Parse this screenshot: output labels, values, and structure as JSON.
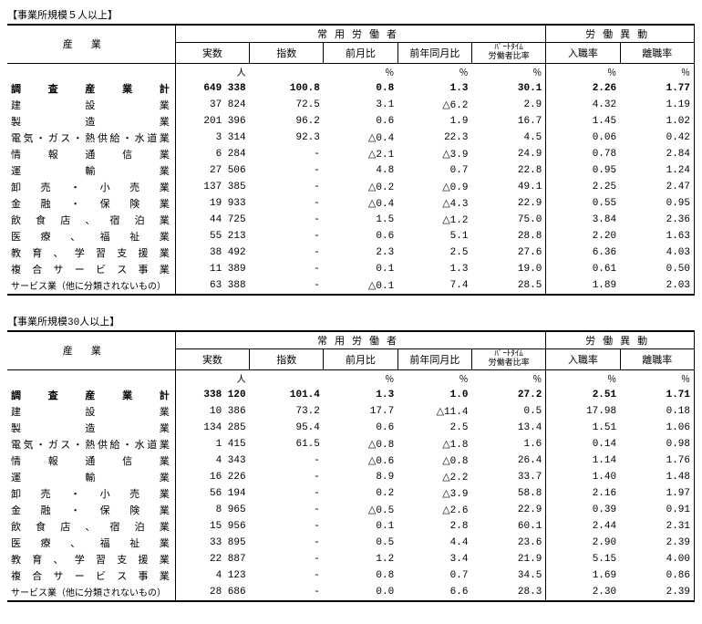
{
  "tables": [
    {
      "caption": "【事業所規模５人以上】",
      "group_headers": [
        "常用労働者",
        "労働異動"
      ],
      "col_headers": [
        "産業",
        "実数",
        "指数",
        "前月比",
        "前年同月比",
        "ﾊﾟｰﾄﾀｲﾑ労働者比率",
        "入職率",
        "離職率"
      ],
      "units": [
        "人",
        "",
        "％",
        "％",
        "％",
        "％",
        "％"
      ],
      "total": {
        "label": "調査産業計",
        "values": [
          "649 338",
          "100.8",
          "0.8",
          "1.3",
          "30.1",
          "2.26",
          "1.77"
        ]
      },
      "rows": [
        {
          "label": "建設業",
          "values": [
            "37 824",
            "72.5",
            "3.1",
            "△6.2",
            "2.9",
            "4.32",
            "1.19"
          ]
        },
        {
          "label": "製造業",
          "values": [
            "201 396",
            "96.2",
            "0.6",
            "1.9",
            "16.7",
            "1.45",
            "1.02"
          ]
        },
        {
          "label": "電気・ガス・熱供給・水道業",
          "values": [
            "3 314",
            "92.3",
            "△0.4",
            "22.3",
            "4.5",
            "0.06",
            "0.42"
          ]
        },
        {
          "label": "情報通信業",
          "values": [
            "6 284",
            "-",
            "△2.1",
            "△3.9",
            "24.9",
            "0.78",
            "2.84"
          ]
        },
        {
          "label": "運輸業",
          "values": [
            "27 506",
            "-",
            "4.8",
            "0.7",
            "22.8",
            "0.95",
            "1.24"
          ]
        },
        {
          "label": "卸売・小売業",
          "values": [
            "137 385",
            "-",
            "△0.2",
            "△0.9",
            "49.1",
            "2.25",
            "2.47"
          ]
        },
        {
          "label": "金融・保険業",
          "values": [
            "19 933",
            "-",
            "△0.4",
            "△4.3",
            "22.9",
            "0.55",
            "0.95"
          ]
        },
        {
          "label": "飲食店、宿泊業",
          "values": [
            "44 725",
            "-",
            "1.5",
            "△1.2",
            "75.0",
            "3.84",
            "2.36"
          ]
        },
        {
          "label": "医療、福祉業",
          "values": [
            "55 213",
            "-",
            "0.6",
            "5.1",
            "28.8",
            "2.20",
            "1.63"
          ]
        },
        {
          "label": "教育、学習支援業",
          "values": [
            "38 492",
            "-",
            "2.3",
            "2.5",
            "27.6",
            "6.36",
            "4.03"
          ]
        },
        {
          "label": "複合サービス事業",
          "values": [
            "11 389",
            "-",
            "0.1",
            "1.3",
            "19.0",
            "0.61",
            "0.50"
          ]
        },
        {
          "label": "サービス業（他に分類されないもの）",
          "values": [
            "63 388",
            "-",
            "△0.1",
            "7.4",
            "28.5",
            "1.89",
            "2.03"
          ]
        }
      ]
    },
    {
      "caption": "【事業所規模30人以上】",
      "group_headers": [
        "常用労働者",
        "労働異動"
      ],
      "col_headers": [
        "産業",
        "実数",
        "指数",
        "前月比",
        "前年同月比",
        "ﾊﾟｰﾄﾀｲﾑ労働者比率",
        "入職率",
        "離職率"
      ],
      "units": [
        "人",
        "",
        "％",
        "％",
        "％",
        "％",
        "％"
      ],
      "total": {
        "label": "調査産業計",
        "values": [
          "338 120",
          "101.4",
          "1.3",
          "1.0",
          "27.2",
          "2.51",
          "1.71"
        ]
      },
      "rows": [
        {
          "label": "建設業",
          "values": [
            "10 386",
            "73.2",
            "17.7",
            "△11.4",
            "0.5",
            "17.98",
            "0.18"
          ]
        },
        {
          "label": "製造業",
          "values": [
            "134 285",
            "95.4",
            "0.6",
            "2.5",
            "13.4",
            "1.51",
            "1.06"
          ]
        },
        {
          "label": "電気・ガス・熱供給・水道業",
          "values": [
            "1 415",
            "61.5",
            "△0.8",
            "△1.8",
            "1.6",
            "0.14",
            "0.98"
          ]
        },
        {
          "label": "情報通信業",
          "values": [
            "4 343",
            "-",
            "△0.6",
            "△0.8",
            "26.4",
            "1.14",
            "1.76"
          ]
        },
        {
          "label": "運輸業",
          "values": [
            "16 226",
            "-",
            "8.9",
            "△2.2",
            "33.7",
            "1.40",
            "1.48"
          ]
        },
        {
          "label": "卸売・小売業",
          "values": [
            "56 194",
            "-",
            "0.2",
            "△3.9",
            "58.8",
            "2.16",
            "1.97"
          ]
        },
        {
          "label": "金融・保険業",
          "values": [
            "8 965",
            "-",
            "△0.5",
            "△2.6",
            "22.9",
            "0.39",
            "0.91"
          ]
        },
        {
          "label": "飲食店、宿泊業",
          "values": [
            "15 956",
            "-",
            "0.1",
            "2.8",
            "60.1",
            "2.44",
            "2.31"
          ]
        },
        {
          "label": "医療、福祉業",
          "values": [
            "33 895",
            "-",
            "0.5",
            "4.4",
            "23.6",
            "2.90",
            "2.39"
          ]
        },
        {
          "label": "教育、学習支援業",
          "values": [
            "22 887",
            "-",
            "1.2",
            "3.4",
            "21.9",
            "5.15",
            "4.00"
          ]
        },
        {
          "label": "複合サービス事業",
          "values": [
            "4 123",
            "-",
            "0.8",
            "0.7",
            "34.5",
            "1.69",
            "0.86"
          ]
        },
        {
          "label": "サービス業（他に分類されないもの）",
          "values": [
            "28 686",
            "-",
            "0.0",
            "6.6",
            "28.3",
            "2.30",
            "2.39"
          ]
        }
      ]
    }
  ]
}
